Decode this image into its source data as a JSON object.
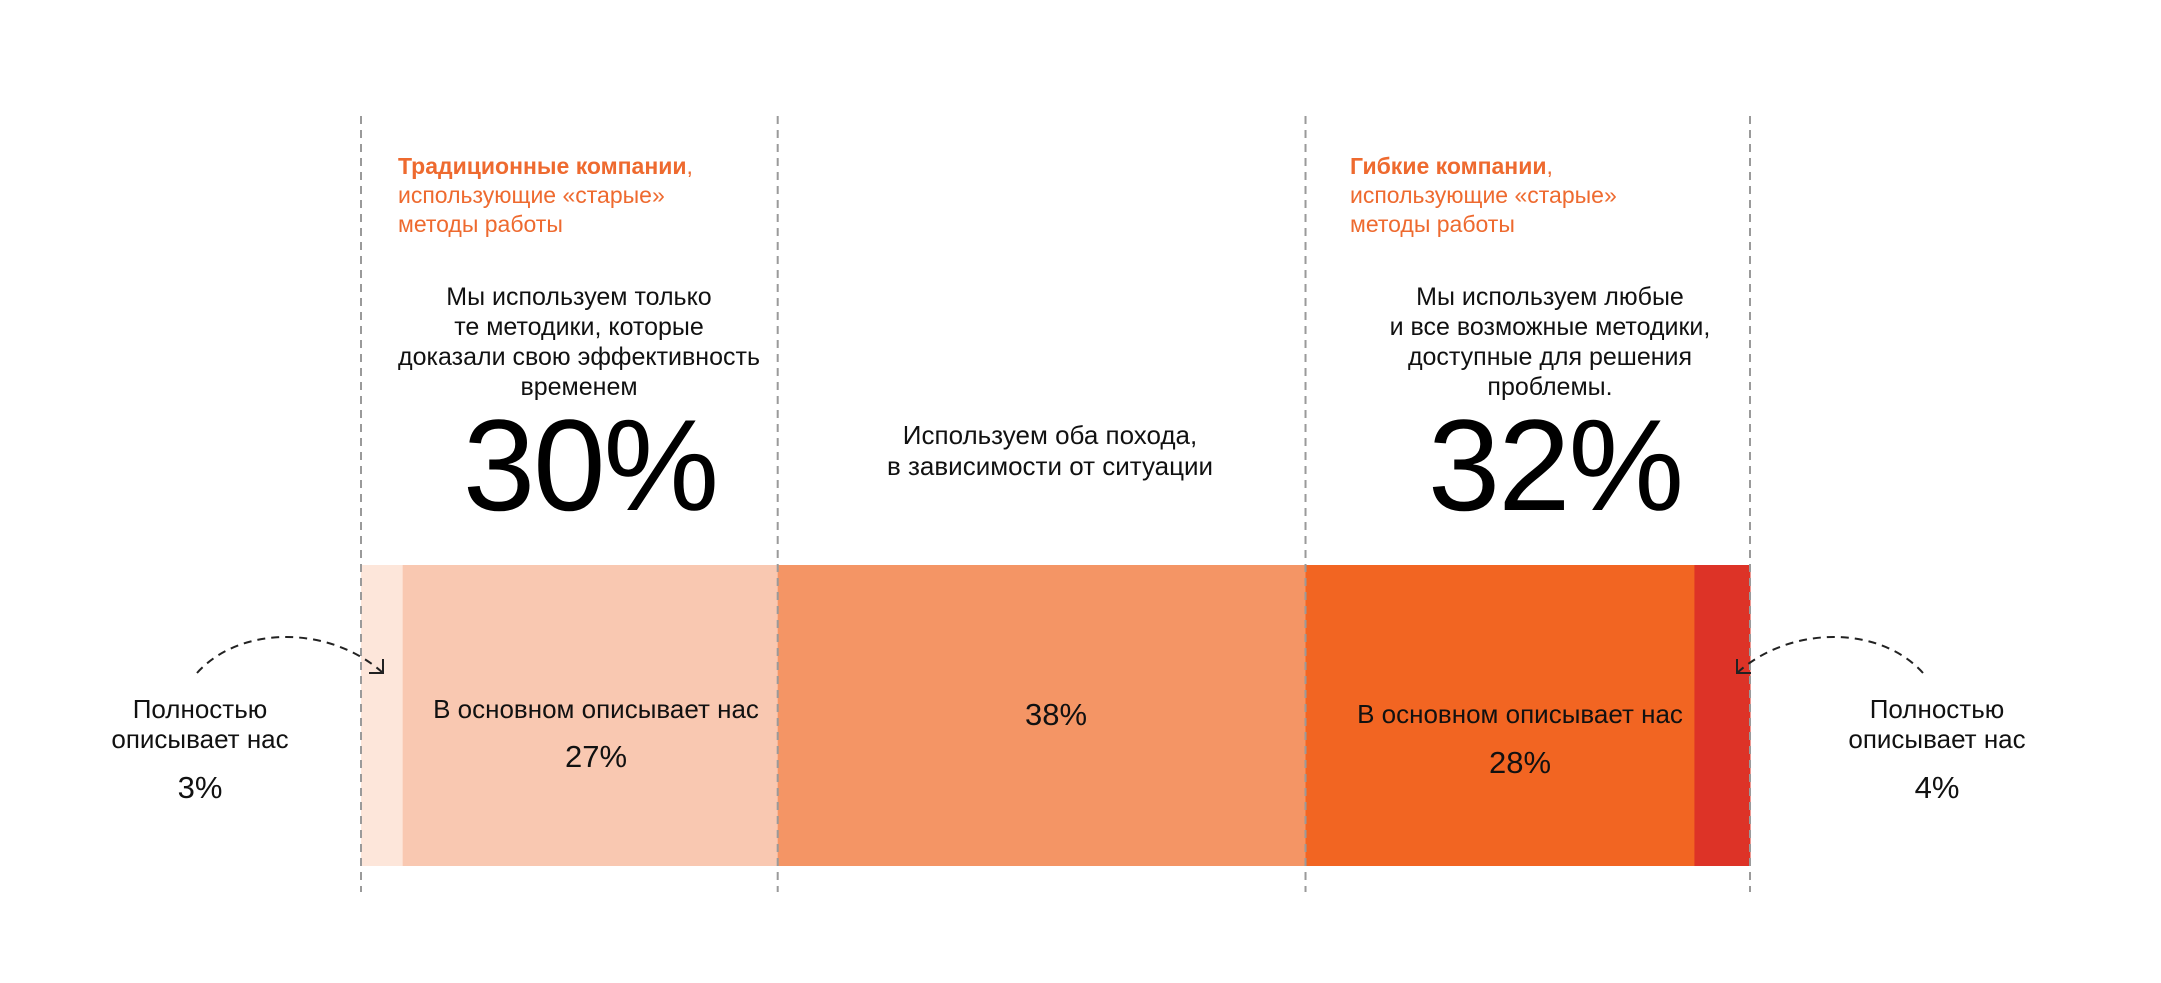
{
  "chart_data": {
    "type": "bar",
    "orientation": "horizontal-stacked",
    "unit": "%",
    "segments": [
      {
        "key": "fully_traditional",
        "value": 3,
        "color": "#fde6da"
      },
      {
        "key": "mostly_traditional",
        "value": 27,
        "color": "#f9c8b1"
      },
      {
        "key": "both",
        "value": 38,
        "color": "#f49565"
      },
      {
        "key": "mostly_flexible",
        "value": 28,
        "color": "#f26522"
      },
      {
        "key": "fully_flexible",
        "value": 4,
        "color": "#dd3327"
      }
    ],
    "groups": [
      {
        "heading_bold": "Традиционные компании",
        "heading_rest": ",\nиспользующие «старые»\nметоды работы",
        "description": "Мы используем только\nте методики, которые\nдоказали свою эффективность\nвременем",
        "total": "30%"
      },
      {
        "heading_bold": "Гибкие компании",
        "heading_rest": ",\nиспользующие «старые»\nметоды работы",
        "description": "Мы используем любые\nи все возможные методики,\nдоступные для решения\nпроблемы.",
        "total": "32%"
      }
    ],
    "middle_label": "Используем оба похода,\nв зависимости от ситуации",
    "labels": {
      "mostly_traditional_label": "В основном описывает нас",
      "mostly_traditional_value": "27%",
      "both_value": "38%",
      "mostly_flexible_label": "В основном описывает нас",
      "mostly_flexible_value": "28%",
      "fully_traditional_label": "Полностью\nописывает нас",
      "fully_traditional_value": "3%",
      "fully_flexible_label": "Полностью\nописывает нас",
      "fully_flexible_value": "4%"
    },
    "colors": {
      "accent": "#ee6a2f",
      "divider": "#9a9a9a",
      "arrow": "#222222"
    }
  }
}
